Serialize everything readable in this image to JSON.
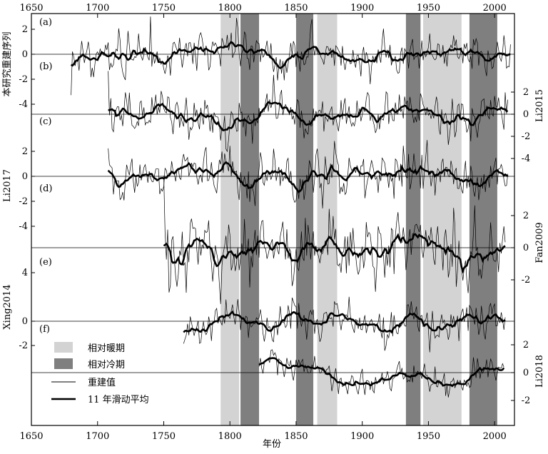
{
  "chart_data": {
    "type": "line",
    "xlabel": "年份",
    "xlim": [
      1650,
      2015
    ],
    "x_ticks": [
      "1650",
      "1700",
      "1750",
      "1800",
      "1850",
      "1900",
      "1950",
      "2000"
    ],
    "bands": [
      {
        "start": 1793,
        "end": 1807,
        "kind": "warm"
      },
      {
        "start": 1808,
        "end": 1822,
        "kind": "cold"
      },
      {
        "start": 1850,
        "end": 1863,
        "kind": "cold"
      },
      {
        "start": 1866,
        "end": 1881,
        "kind": "warm"
      },
      {
        "start": 1933,
        "end": 1944,
        "kind": "cold"
      },
      {
        "start": 1946,
        "end": 1975,
        "kind": "warm"
      },
      {
        "start": 1981,
        "end": 2002,
        "kind": "cold"
      }
    ],
    "band_colors": {
      "warm": "#d3d3d3",
      "cold": "#7f7f7f"
    },
    "panels": [
      {
        "tag": "(a)",
        "name": "本研究重建序列",
        "side": "left",
        "start": 1680,
        "end": 2012,
        "seed": 11,
        "noise": 0.85,
        "ticks": [
          "2",
          "0",
          "-2",
          "-4"
        ],
        "smooth_trend": [
          [
            1680,
            0.2
          ],
          [
            1700,
            -0.1
          ],
          [
            1720,
            0.0
          ],
          [
            1760,
            0.1
          ],
          [
            1800,
            0.5
          ],
          [
            1815,
            -0.3
          ],
          [
            1850,
            -0.3
          ],
          [
            1880,
            -0.2
          ],
          [
            1900,
            -0.4
          ],
          [
            1950,
            0.2
          ],
          [
            1975,
            0.4
          ],
          [
            2012,
            0.1
          ]
        ]
      },
      {
        "tag": "(b)",
        "name": "Li2015",
        "side": "right",
        "start": 1708,
        "end": 2010,
        "seed": 23,
        "noise": 1.0,
        "ticks": [
          "2",
          "0",
          "-2",
          "-4"
        ],
        "smooth_trend": [
          [
            1708,
            -0.2
          ],
          [
            1730,
            -0.3
          ],
          [
            1750,
            0.3
          ],
          [
            1780,
            0.0
          ],
          [
            1800,
            -0.3
          ],
          [
            1810,
            -1.0
          ],
          [
            1830,
            0.5
          ],
          [
            1860,
            0.0
          ],
          [
            1900,
            -0.2
          ],
          [
            1940,
            0.3
          ],
          [
            1955,
            0.2
          ],
          [
            1965,
            -0.3
          ],
          [
            1980,
            0.0
          ],
          [
            2010,
            0.1
          ]
        ]
      },
      {
        "tag": "(c)",
        "name": "Li2017",
        "side": "left",
        "start": 1708,
        "end": 2010,
        "seed": 37,
        "noise": 0.9,
        "ticks": [
          "2",
          "0",
          "-2",
          "-4"
        ],
        "smooth_trend": [
          [
            1708,
            -0.2
          ],
          [
            1740,
            -0.1
          ],
          [
            1770,
            0.6
          ],
          [
            1800,
            0.7
          ],
          [
            1815,
            -0.7
          ],
          [
            1840,
            -0.3
          ],
          [
            1870,
            0.4
          ],
          [
            1900,
            -0.3
          ],
          [
            1920,
            0.0
          ],
          [
            1950,
            0.7
          ],
          [
            1975,
            -0.3
          ],
          [
            1985,
            -0.4
          ],
          [
            2010,
            0.2
          ]
        ]
      },
      {
        "tag": "(d)",
        "name": "Fan2009",
        "side": "right",
        "start": 1750,
        "end": 2008,
        "seed": 53,
        "noise": 1.0,
        "ticks": [
          "2",
          "0",
          "-2"
        ],
        "smooth_trend": [
          [
            1750,
            0.6
          ],
          [
            1760,
            -0.2
          ],
          [
            1800,
            -0.1
          ],
          [
            1820,
            0.3
          ],
          [
            1850,
            0.1
          ],
          [
            1880,
            0.1
          ],
          [
            1905,
            -0.4
          ],
          [
            1930,
            0.2
          ],
          [
            1950,
            0.8
          ],
          [
            1970,
            0.0
          ],
          [
            1990,
            -0.8
          ],
          [
            2008,
            -0.1
          ]
        ]
      },
      {
        "tag": "(e)",
        "name": "Xing2014",
        "side": "left",
        "start": 1765,
        "end": 2008,
        "seed": 71,
        "noise": 0.8,
        "ticks": [
          "4",
          "0",
          "-2"
        ],
        "smooth_trend": [
          [
            1765,
            -0.2
          ],
          [
            1785,
            -0.6
          ],
          [
            1805,
            0.6
          ],
          [
            1830,
            -0.3
          ],
          [
            1860,
            -0.2
          ],
          [
            1880,
            0.7
          ],
          [
            1900,
            -0.5
          ],
          [
            1935,
            0.3
          ],
          [
            1955,
            -0.4
          ],
          [
            1980,
            -0.1
          ],
          [
            2000,
            0.1
          ],
          [
            2008,
            0.7
          ]
        ]
      },
      {
        "tag": "(f)",
        "name": "Li2018",
        "side": "right",
        "start": 1822,
        "end": 2007,
        "seed": 89,
        "noise": 0.45,
        "ticks": [
          "2",
          "0",
          "-2"
        ],
        "smooth_trend": [
          [
            1822,
            0.9
          ],
          [
            1845,
            0.5
          ],
          [
            1865,
            0.5
          ],
          [
            1875,
            -0.2
          ],
          [
            1885,
            -0.8
          ],
          [
            1910,
            -0.5
          ],
          [
            1935,
            -0.2
          ],
          [
            1950,
            -0.6
          ],
          [
            1965,
            -1.0
          ],
          [
            1985,
            0.1
          ],
          [
            1997,
            0.1
          ],
          [
            2007,
            0.7
          ]
        ]
      }
    ],
    "legend": {
      "warm_label": "相对暖期",
      "cold_label": "相对冷期",
      "raw_label": "重建值",
      "smooth_label": "11 年滑动平均"
    }
  }
}
